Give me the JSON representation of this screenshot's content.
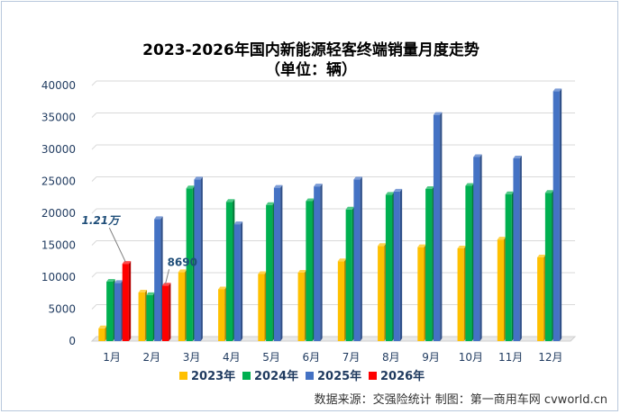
{
  "chart_data": {
    "type": "bar",
    "title": "2023-2026年国内新能源轻客终端销量月度走势",
    "subtitle": "（单位：辆）",
    "categories": [
      "1月",
      "2月",
      "3月",
      "4月",
      "5月",
      "6月",
      "7月",
      "8月",
      "9月",
      "10月",
      "11月",
      "12月"
    ],
    "series": [
      {
        "name": "2023年",
        "color": "#ffc000",
        "values": [
          2000,
          7600,
          10800,
          8100,
          10500,
          10700,
          12500,
          14900,
          14700,
          14500,
          15900,
          13100
        ]
      },
      {
        "name": "2024年",
        "color": "#00b050",
        "values": [
          9300,
          7200,
          23900,
          21800,
          21300,
          21900,
          20600,
          22900,
          23800,
          24300,
          23000,
          23200
        ]
      },
      {
        "name": "2025年",
        "color": "#4472c4",
        "values": [
          9100,
          19100,
          25300,
          18300,
          24000,
          24200,
          25300,
          23400,
          35400,
          28800,
          28600,
          39100
        ]
      },
      {
        "name": "2026年",
        "color": "#ff0000",
        "values": [
          12100,
          8690,
          null,
          null,
          null,
          null,
          null,
          null,
          null,
          null,
          null,
          null
        ]
      }
    ],
    "ylim": [
      0,
      40000
    ],
    "yticks": [
      0,
      5000,
      10000,
      15000,
      20000,
      25000,
      30000,
      35000,
      40000
    ],
    "annotations": [
      {
        "text": "1.21万",
        "category": "1月"
      },
      {
        "text": "8690",
        "category": "2月"
      }
    ],
    "legend_position": "bottom",
    "source": "数据来源：交强险统计  制图：第一商用车网 cvworld.cn"
  }
}
